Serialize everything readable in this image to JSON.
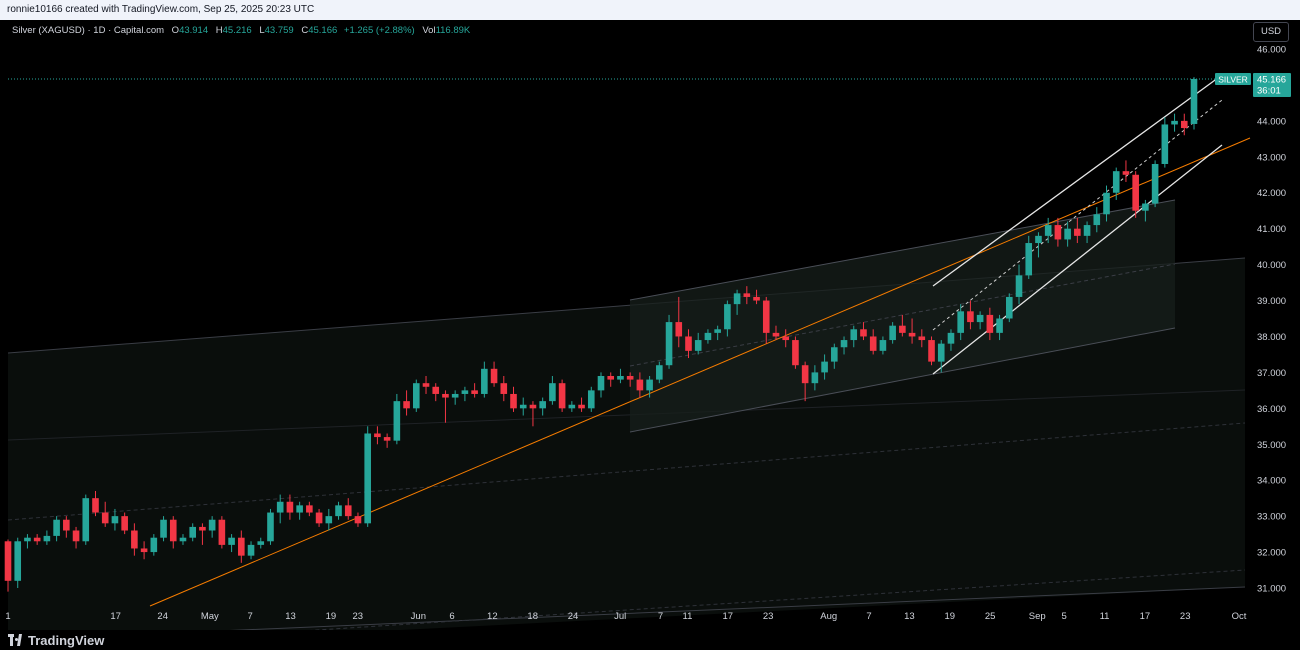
{
  "header": {
    "attribution": "ronnie10166 created with TradingView.com, Sep 25, 2025 20:23 UTC"
  },
  "legend": {
    "symbol": "Silver (XAGUSD) · 1D · Capital.com",
    "open_label": "O",
    "open": "43.914",
    "high_label": "H",
    "high": "45.216",
    "low_label": "L",
    "low": "43.759",
    "close_label": "C",
    "close": "45.166",
    "change": "+1.265 (+2.88%)",
    "vol_label": "Vol",
    "vol": "116.89K"
  },
  "currency": "USD",
  "price_tag": {
    "symbol": "SILVER",
    "price": "45.166",
    "countdown": "36:01"
  },
  "brand": "TradingView",
  "colors": {
    "up": "#26a69a",
    "down": "#f23645",
    "orange": "#f57c00",
    "grid": "#1e222d"
  },
  "chart_data": {
    "type": "candlestick",
    "ylim": [
      30.5,
      46.4
    ],
    "y_ticks": [
      "46.000",
      "45.000",
      "44.000",
      "43.000",
      "42.000",
      "41.000",
      "40.000",
      "39.000",
      "38.000",
      "37.000",
      "36.000",
      "35.000",
      "34.000",
      "33.000",
      "32.000",
      "31.000"
    ],
    "x_ticks": [
      {
        "label": "1",
        "day": 0
      },
      {
        "label": "17",
        "day": 16
      },
      {
        "label": "24",
        "day": 23
      },
      {
        "label": "May",
        "day": 30
      },
      {
        "label": "7",
        "day": 36
      },
      {
        "label": "13",
        "day": 42
      },
      {
        "label": "19",
        "day": 48
      },
      {
        "label": "23",
        "day": 52
      },
      {
        "label": "Jun",
        "day": 61
      },
      {
        "label": "6",
        "day": 66
      },
      {
        "label": "12",
        "day": 72
      },
      {
        "label": "18",
        "day": 78
      },
      {
        "label": "24",
        "day": 84
      },
      {
        "label": "Jul",
        "day": 91
      },
      {
        "label": "7",
        "day": 97
      },
      {
        "label": "11",
        "day": 101
      },
      {
        "label": "17",
        "day": 107
      },
      {
        "label": "23",
        "day": 113
      },
      {
        "label": "Aug",
        "day": 122
      },
      {
        "label": "7",
        "day": 128
      },
      {
        "label": "13",
        "day": 134
      },
      {
        "label": "19",
        "day": 140
      },
      {
        "label": "25",
        "day": 146
      },
      {
        "label": "Sep",
        "day": 153
      },
      {
        "label": "5",
        "day": 157
      },
      {
        "label": "11",
        "day": 163
      },
      {
        "label": "17",
        "day": 169
      },
      {
        "label": "23",
        "day": 175
      },
      {
        "label": "Oct",
        "day": 183
      }
    ],
    "candles": [
      [
        32.3,
        32.35,
        30.9,
        31.2
      ],
      [
        31.2,
        32.4,
        31.0,
        32.3
      ],
      [
        32.3,
        32.5,
        32.1,
        32.4
      ],
      [
        32.4,
        32.5,
        32.2,
        32.3
      ],
      [
        32.3,
        32.6,
        32.2,
        32.45
      ],
      [
        32.45,
        33.0,
        32.3,
        32.9
      ],
      [
        32.9,
        33.0,
        32.4,
        32.6
      ],
      [
        32.6,
        32.7,
        32.1,
        32.3
      ],
      [
        32.3,
        33.6,
        32.2,
        33.5
      ],
      [
        33.5,
        33.7,
        33.0,
        33.1
      ],
      [
        33.1,
        33.4,
        32.7,
        32.8
      ],
      [
        32.8,
        33.2,
        32.6,
        33.0
      ],
      [
        33.0,
        33.1,
        32.5,
        32.6
      ],
      [
        32.6,
        32.8,
        31.9,
        32.1
      ],
      [
        32.1,
        32.3,
        31.8,
        32.0
      ],
      [
        32.0,
        32.5,
        31.9,
        32.4
      ],
      [
        32.4,
        33.0,
        32.3,
        32.9
      ],
      [
        32.9,
        33.0,
        32.1,
        32.3
      ],
      [
        32.3,
        32.5,
        32.2,
        32.4
      ],
      [
        32.4,
        32.8,
        32.3,
        32.7
      ],
      [
        32.7,
        32.8,
        32.2,
        32.6
      ],
      [
        32.6,
        33.0,
        32.4,
        32.9
      ],
      [
        32.9,
        33.0,
        32.1,
        32.2
      ],
      [
        32.2,
        32.5,
        32.0,
        32.4
      ],
      [
        32.4,
        32.6,
        31.7,
        31.9
      ],
      [
        31.9,
        32.3,
        31.8,
        32.2
      ],
      [
        32.2,
        32.4,
        32.1,
        32.3
      ],
      [
        32.3,
        33.2,
        32.2,
        33.1
      ],
      [
        33.1,
        33.6,
        32.8,
        33.4
      ],
      [
        33.4,
        33.6,
        32.9,
        33.1
      ],
      [
        33.1,
        33.4,
        32.9,
        33.3
      ],
      [
        33.3,
        33.4,
        33.0,
        33.1
      ],
      [
        33.1,
        33.2,
        32.7,
        32.8
      ],
      [
        32.8,
        33.2,
        32.6,
        33.0
      ],
      [
        33.0,
        33.4,
        32.9,
        33.3
      ],
      [
        33.3,
        33.5,
        32.9,
        33.0
      ],
      [
        33.0,
        33.1,
        32.7,
        32.8
      ],
      [
        32.8,
        35.5,
        32.7,
        35.3
      ],
      [
        35.3,
        35.5,
        35.0,
        35.2
      ],
      [
        35.2,
        35.3,
        34.9,
        35.1
      ],
      [
        35.1,
        36.4,
        35.0,
        36.2
      ],
      [
        36.2,
        36.5,
        35.8,
        36.0
      ],
      [
        36.0,
        36.8,
        35.9,
        36.7
      ],
      [
        36.7,
        36.9,
        36.4,
        36.6
      ],
      [
        36.6,
        36.7,
        36.2,
        36.4
      ],
      [
        36.4,
        36.5,
        35.6,
        36.3
      ],
      [
        36.3,
        36.5,
        36.1,
        36.4
      ],
      [
        36.4,
        36.6,
        36.2,
        36.5
      ],
      [
        36.5,
        36.7,
        36.3,
        36.4
      ],
      [
        36.4,
        37.3,
        36.3,
        37.1
      ],
      [
        37.1,
        37.3,
        36.6,
        36.7
      ],
      [
        36.7,
        36.9,
        36.2,
        36.4
      ],
      [
        36.4,
        36.6,
        35.9,
        36.0
      ],
      [
        36.0,
        36.3,
        35.8,
        36.1
      ],
      [
        36.1,
        36.2,
        35.5,
        36.0
      ],
      [
        36.0,
        36.3,
        35.8,
        36.2
      ],
      [
        36.2,
        36.9,
        36.1,
        36.7
      ],
      [
        36.7,
        36.8,
        35.9,
        36.0
      ],
      [
        36.0,
        36.2,
        35.9,
        36.1
      ],
      [
        36.1,
        36.3,
        35.9,
        36.0
      ],
      [
        36.0,
        36.6,
        35.9,
        36.5
      ],
      [
        36.5,
        37.0,
        36.3,
        36.9
      ],
      [
        36.9,
        37.0,
        36.6,
        36.8
      ],
      [
        36.8,
        37.1,
        36.7,
        36.9
      ],
      [
        36.9,
        37.0,
        36.6,
        36.8
      ],
      [
        36.8,
        37.0,
        36.3,
        36.5
      ],
      [
        36.5,
        36.9,
        36.3,
        36.8
      ],
      [
        36.8,
        37.3,
        36.7,
        37.2
      ],
      [
        37.2,
        38.6,
        37.1,
        38.4
      ],
      [
        38.4,
        39.1,
        37.7,
        38.0
      ],
      [
        38.0,
        38.2,
        37.4,
        37.6
      ],
      [
        37.6,
        38.1,
        37.5,
        37.9
      ],
      [
        37.9,
        38.2,
        37.8,
        38.1
      ],
      [
        38.1,
        38.3,
        37.9,
        38.2
      ],
      [
        38.2,
        39.0,
        38.0,
        38.9
      ],
      [
        38.9,
        39.3,
        38.6,
        39.2
      ],
      [
        39.2,
        39.4,
        38.9,
        39.1
      ],
      [
        39.1,
        39.3,
        38.9,
        39.0
      ],
      [
        39.0,
        39.1,
        37.8,
        38.1
      ],
      [
        38.1,
        38.3,
        37.9,
        38.0
      ],
      [
        38.0,
        38.2,
        37.7,
        37.9
      ],
      [
        37.9,
        38.0,
        37.1,
        37.2
      ],
      [
        37.2,
        37.3,
        36.2,
        36.7
      ],
      [
        36.7,
        37.2,
        36.5,
        37.0
      ],
      [
        37.0,
        37.5,
        36.8,
        37.3
      ],
      [
        37.3,
        37.8,
        37.1,
        37.7
      ],
      [
        37.7,
        38.0,
        37.5,
        37.9
      ],
      [
        37.9,
        38.3,
        37.7,
        38.2
      ],
      [
        38.2,
        38.4,
        37.9,
        38.0
      ],
      [
        38.0,
        38.2,
        37.5,
        37.6
      ],
      [
        37.6,
        38.0,
        37.5,
        37.9
      ],
      [
        37.9,
        38.4,
        37.8,
        38.3
      ],
      [
        38.3,
        38.6,
        38.0,
        38.1
      ],
      [
        38.1,
        38.5,
        37.8,
        38.0
      ],
      [
        38.0,
        38.2,
        37.7,
        37.9
      ],
      [
        37.9,
        38.0,
        37.2,
        37.3
      ],
      [
        37.3,
        37.9,
        37.0,
        37.8
      ],
      [
        37.8,
        38.2,
        37.6,
        38.1
      ],
      [
        38.1,
        38.9,
        37.9,
        38.7
      ],
      [
        38.7,
        39.0,
        38.2,
        38.4
      ],
      [
        38.4,
        38.7,
        38.2,
        38.6
      ],
      [
        38.6,
        38.8,
        37.9,
        38.1
      ],
      [
        38.1,
        38.6,
        37.9,
        38.5
      ],
      [
        38.5,
        39.2,
        38.4,
        39.1
      ],
      [
        39.1,
        40.0,
        38.9,
        39.7
      ],
      [
        39.7,
        40.8,
        39.6,
        40.6
      ],
      [
        40.6,
        40.9,
        40.2,
        40.8
      ],
      [
        40.8,
        41.3,
        40.6,
        41.1
      ],
      [
        41.1,
        41.3,
        40.5,
        40.7
      ],
      [
        40.7,
        41.2,
        40.5,
        41.0
      ],
      [
        41.0,
        41.3,
        40.6,
        40.8
      ],
      [
        40.8,
        41.2,
        40.6,
        41.1
      ],
      [
        41.1,
        41.6,
        40.9,
        41.4
      ],
      [
        41.4,
        42.2,
        41.2,
        42.0
      ],
      [
        42.0,
        42.7,
        41.8,
        42.6
      ],
      [
        42.6,
        42.9,
        42.3,
        42.5
      ],
      [
        42.5,
        42.6,
        41.3,
        41.5
      ],
      [
        41.5,
        41.8,
        41.2,
        41.7
      ],
      [
        41.7,
        42.9,
        41.6,
        42.8
      ],
      [
        42.8,
        44.1,
        42.7,
        43.9
      ],
      [
        43.9,
        44.2,
        43.7,
        44.0
      ],
      [
        44.0,
        44.2,
        43.6,
        43.8
      ],
      [
        43.914,
        45.216,
        43.759,
        45.166
      ]
    ]
  }
}
